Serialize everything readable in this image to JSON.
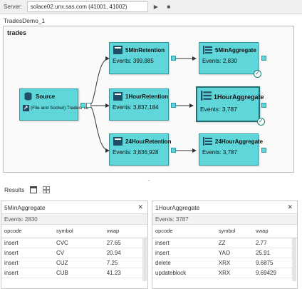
{
  "topbar": {
    "server_label": "Server:",
    "server_value": "solace02.unx.sas.com (41001, 41002)",
    "play_icon": "play-icon",
    "stop_icon": "stop-icon"
  },
  "project": {
    "title": "TradesDemo_1"
  },
  "canvas": {
    "title": "trades",
    "nodes": {
      "source": {
        "title": "Source",
        "subtitle": "(File and Socket) TradesFile"
      },
      "r5": {
        "title": "5MinRetention",
        "events": "Events: 399,885"
      },
      "r1h": {
        "title": "1HourRetention",
        "events": "Events: 3,837,184"
      },
      "r24": {
        "title": "24HourRetention",
        "events": "Events: 3,836,928"
      },
      "a5": {
        "title": "5MinAggregate",
        "events": "Events: 2,830"
      },
      "a1h": {
        "title": "1HourAggregate",
        "events": "Events: 3,787"
      },
      "a24": {
        "title": "24HourAggregate",
        "events": "Events: 3,787"
      }
    }
  },
  "results": {
    "label": "Results"
  },
  "panel_left": {
    "title": "5MinAggregate",
    "events": "Events: 2830",
    "columns": [
      "opcode",
      "symbol",
      "vwap"
    ],
    "rows": [
      [
        "insert",
        "CVC",
        "27.65"
      ],
      [
        "insert",
        "CV",
        "20.94"
      ],
      [
        "insert",
        "CUZ",
        "7.25"
      ],
      [
        "insert",
        "CUB",
        "41.23"
      ]
    ]
  },
  "panel_right": {
    "title": "1HourAggregate",
    "events": "Events: 3787",
    "columns": [
      "opcode",
      "symbol",
      "vwap"
    ],
    "rows": [
      [
        "insert",
        "ZZ",
        "2.77"
      ],
      [
        "insert",
        "YAO",
        "25.91"
      ],
      [
        "delete",
        "XRX",
        "9.6875"
      ],
      [
        "updateblock",
        "XRX",
        "9.69429"
      ]
    ]
  },
  "colors": {
    "node_fill": "#5fd6da",
    "node_border": "#2a9aa0",
    "check": "#1c7a6e"
  }
}
